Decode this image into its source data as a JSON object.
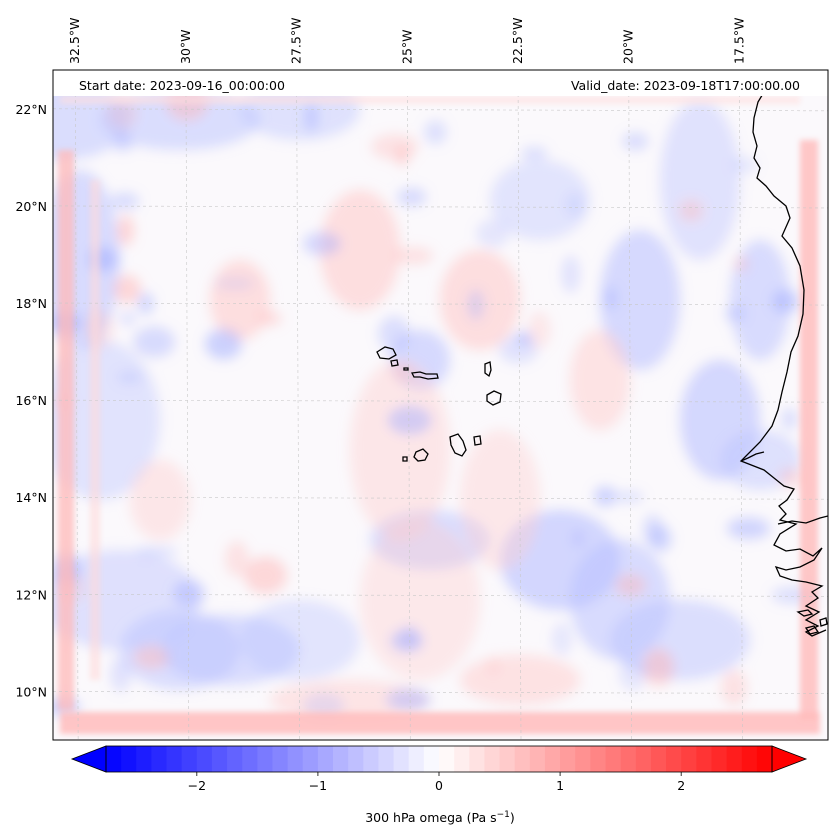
{
  "header": {
    "start_label": "Start date: 2023-09-16_00:00:00",
    "valid_label": "Valid_date: 2023-09-18T17:00:00.00"
  },
  "map": {
    "lon_range": [
      -33.0,
      -15.5
    ],
    "lat_range": [
      9.0,
      22.8
    ],
    "lon_ticks": [
      "32.5°W",
      "30°W",
      "27.5°W",
      "25°W",
      "22.5°W",
      "20°W",
      "17.5°W"
    ],
    "lon_values": [
      -32.5,
      -30,
      -27.5,
      -25,
      -22.5,
      -20,
      -17.5
    ],
    "lat_ticks": [
      "22°N",
      "20°N",
      "18°N",
      "16°N",
      "14°N",
      "12°N",
      "10°N"
    ],
    "lat_values": [
      22,
      20,
      18,
      16,
      14,
      12,
      10
    ],
    "gridlines": true,
    "coastlines": true
  },
  "colorbar": {
    "colormap": "bwr",
    "min_color": "#0000ff",
    "mid_color": "#ffffff",
    "max_color": "#ff0000",
    "range": [
      -2.75,
      2.75
    ],
    "extend": "both",
    "tick_labels": [
      "−2",
      "−1",
      "0",
      "1",
      "2"
    ],
    "tick_values": [
      -2,
      -1,
      0,
      1,
      2
    ],
    "label": "300 hPa omega (Pa s",
    "label_exp": "−1",
    "label_end": ")"
  }
}
